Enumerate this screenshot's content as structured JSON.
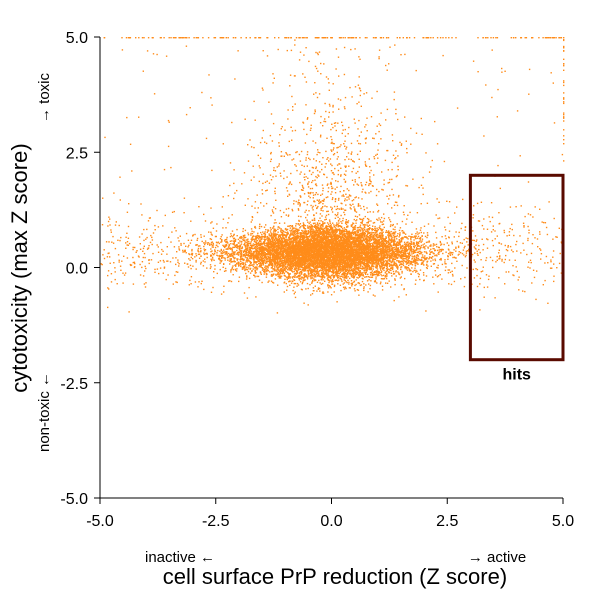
{
  "colors": {
    "points": "#ff8c1a",
    "hits_box": "#5a0a00",
    "axis": "#000000"
  },
  "chart_data": {
    "type": "scatter",
    "title": "",
    "xlabel": "cell surface PrP reduction (Z score)",
    "ylabel": "cytotoxicity (max Z score)",
    "xlim": [
      -5.0,
      5.0
    ],
    "ylim": [
      -5.0,
      5.0
    ],
    "xticks": [
      "-5.0",
      "-2.5",
      "0.0",
      "2.5",
      "5.0"
    ],
    "yticks": [
      "-5.0",
      "-2.5",
      "0.0",
      "2.5",
      "5.0"
    ],
    "grid": false,
    "legend": "none",
    "x_direction_labels": {
      "low": "inactive ←",
      "high": "→ active"
    },
    "y_direction_labels": {
      "low": "non-toxic ←",
      "high": "→ toxic"
    },
    "distribution": {
      "center_x": -0.1,
      "center_y": 0.35,
      "spread_x": 1.0,
      "spread_y": 0.32,
      "y_clipped_at": 5.0
    },
    "annotations": [
      {
        "type": "rect",
        "label": "hits",
        "x0": 3.0,
        "x1": 5.0,
        "y0": -2.0,
        "y1": 2.0
      }
    ]
  }
}
